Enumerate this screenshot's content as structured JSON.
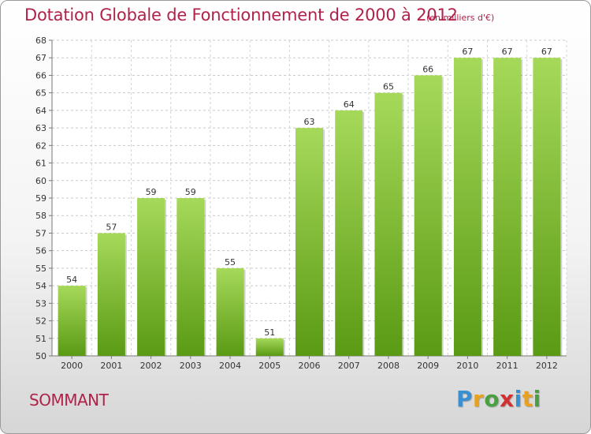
{
  "title": "Dotation Globale de Fonctionnement de 2000 à 2012",
  "subtitle": "(en milliers d'€)",
  "commune": "SOMMANT",
  "brand": {
    "letters": [
      "P",
      "r",
      "o",
      "x",
      "i",
      "t",
      "i"
    ],
    "colors": [
      "#3a8fd0",
      "#e8a020",
      "#4aa040",
      "#d03030",
      "#3a8fd0",
      "#e8a020",
      "#4aa040"
    ]
  },
  "colors": {
    "bar_light": "#a6d95a",
    "bar_dark": "#5a9a14",
    "title": "#b0224a"
  },
  "chart_data": {
    "type": "bar",
    "title": "Dotation Globale de Fonctionnement de 2000 à 2012",
    "subtitle": "(en milliers d'€)",
    "categories": [
      "2000",
      "2001",
      "2002",
      "2003",
      "2004",
      "2005",
      "2006",
      "2007",
      "2008",
      "2009",
      "2010",
      "2011",
      "2012"
    ],
    "values": [
      54,
      57,
      59,
      59,
      55,
      51,
      63,
      64,
      65,
      66,
      67,
      67,
      67
    ],
    "data_labels": [
      "54",
      "57",
      "59",
      "59",
      "55",
      "51",
      "63",
      "64",
      "65",
      "66",
      "67",
      "67",
      "67"
    ],
    "yticks": [
      "50",
      "51",
      "52",
      "53",
      "54",
      "55",
      "56",
      "57",
      "58",
      "59",
      "60",
      "61",
      "62",
      "63",
      "64",
      "65",
      "66",
      "67",
      "68"
    ],
    "ylim": [
      50,
      68
    ],
    "xlabel": "",
    "ylabel": "",
    "grid": true
  }
}
